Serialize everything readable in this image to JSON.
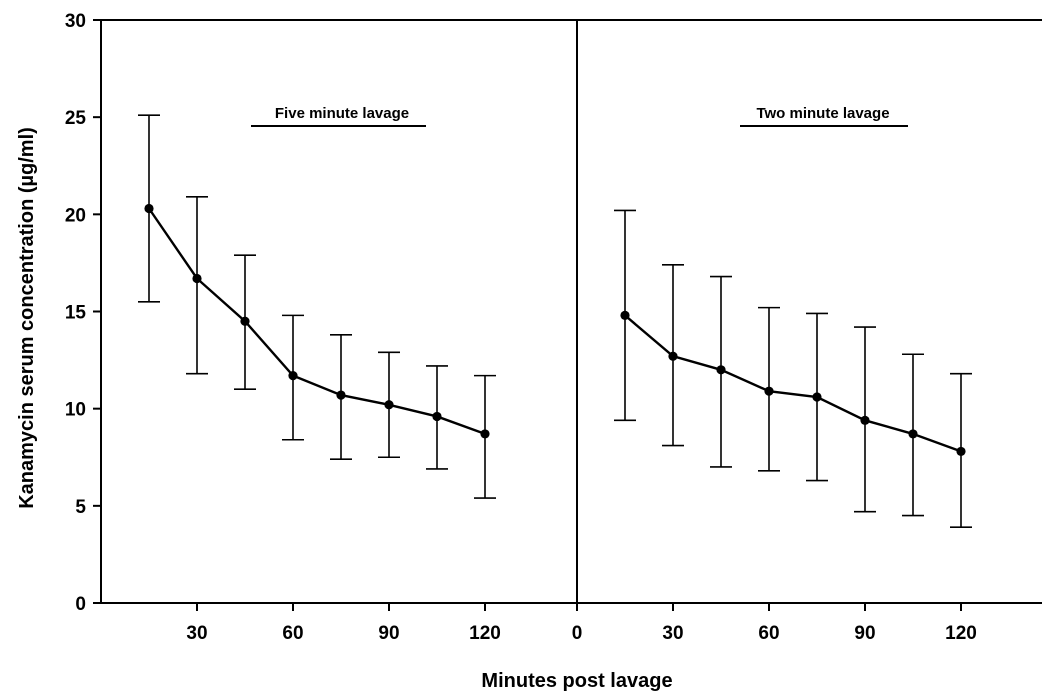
{
  "chart_data": {
    "type": "line",
    "ylabel": "Kanamycin serum concentration (µg/ml)",
    "xlabel": "Minutes post lavage",
    "ylim": [
      0,
      30
    ],
    "yticks": [
      0,
      5,
      10,
      15,
      20,
      25,
      30
    ],
    "xlim": [
      0,
      140
    ],
    "xticks": [
      30,
      60,
      90,
      120
    ],
    "grid": false,
    "colors": {
      "line": "#000000",
      "background": "#ffffff"
    },
    "panels": [
      {
        "label": "Five minute lavage",
        "series": [
          {
            "x": [
              15,
              30,
              45,
              60,
              75,
              90,
              105,
              120
            ],
            "y": [
              20.3,
              16.7,
              14.5,
              11.7,
              10.7,
              10.2,
              9.6,
              8.7
            ],
            "err_low": [
              15.5,
              11.8,
              11.0,
              8.4,
              7.4,
              7.5,
              6.9,
              5.4
            ],
            "err_high": [
              25.1,
              20.9,
              17.9,
              14.8,
              13.8,
              12.9,
              12.2,
              11.7
            ]
          }
        ]
      },
      {
        "label": "Two minute lavage",
        "series": [
          {
            "x": [
              15,
              30,
              45,
              60,
              75,
              90,
              105,
              120
            ],
            "y": [
              14.8,
              12.7,
              12.0,
              10.9,
              10.6,
              9.4,
              8.7,
              7.8
            ],
            "err_low": [
              9.4,
              8.1,
              7.0,
              6.8,
              6.3,
              4.7,
              4.5,
              3.9
            ],
            "err_high": [
              20.2,
              17.4,
              16.8,
              15.2,
              14.9,
              14.2,
              12.8,
              11.8
            ]
          }
        ]
      }
    ]
  }
}
